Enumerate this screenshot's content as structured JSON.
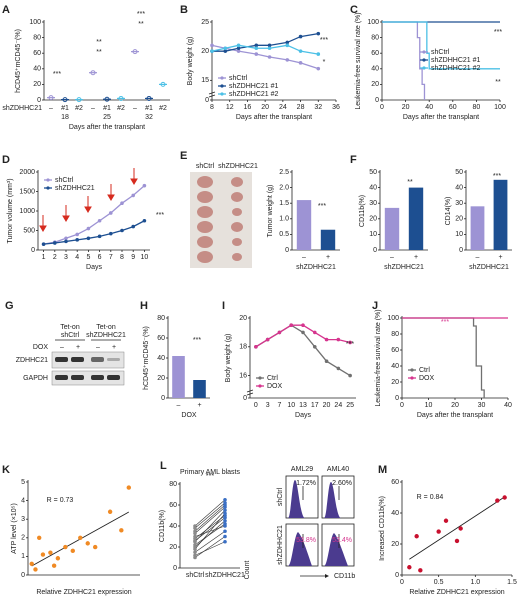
{
  "chart_data": [
    {
      "panel": "A",
      "type": "dot",
      "ylabel": "hCD45⁺mCD45⁻(%)",
      "xlabel": "Days after the transplant",
      "group_label": "shZDHHC21",
      "categories": [
        "–",
        "#1",
        "#2",
        "–",
        "#1",
        "#2",
        "–",
        "#1",
        "#2"
      ],
      "groups": [
        "18",
        "25",
        "32"
      ],
      "values": [
        3,
        0.5,
        0.5,
        35,
        1,
        2,
        62,
        2,
        20
      ],
      "colors": [
        "#9d93d4",
        "#1d4f91",
        "#4cc0e6",
        "#9d93d4",
        "#1d4f91",
        "#4cc0e6",
        "#9d93d4",
        "#1d4f91",
        "#4cc0e6"
      ],
      "ylim": [
        0,
        100
      ],
      "yticks": [
        0,
        20,
        40,
        60,
        80,
        100
      ],
      "annotations": [
        "***",
        "**",
        "**",
        "***",
        "**"
      ]
    },
    {
      "panel": "B",
      "type": "line",
      "ylabel": "Body weight (g)",
      "xlabel": "Days after the transplant",
      "x": [
        8,
        11,
        14,
        18,
        21,
        25,
        28,
        32
      ],
      "xlim": [
        8,
        36
      ],
      "xticks": [
        8,
        12,
        16,
        20,
        24,
        28,
        32,
        36
      ],
      "ylim": [
        0,
        25
      ],
      "ybreak": [
        0,
        13
      ],
      "yticks": [
        0,
        15,
        20,
        25
      ],
      "series": [
        {
          "name": "shCtrl",
          "color": "#9d93d4",
          "values": [
            21,
            20.5,
            20,
            19.5,
            19,
            18.5,
            18,
            17
          ]
        },
        {
          "name": "shZDHHC21 #1",
          "color": "#1d4f91",
          "values": [
            20,
            20,
            20.5,
            21,
            21,
            21.5,
            22.5,
            23
          ]
        },
        {
          "name": "shZDHHC21 #2",
          "color": "#4cc0e6",
          "values": [
            20,
            20.5,
            21,
            20.5,
            20.5,
            21,
            20,
            19.5
          ]
        }
      ],
      "annotations": [
        "***",
        "*"
      ]
    },
    {
      "panel": "C",
      "type": "step",
      "ylabel": "Leukemia-free survival rate (%)",
      "xlabel": "Days after the transplant",
      "xlim": [
        0,
        100
      ],
      "xticks": [
        0,
        20,
        40,
        60,
        80,
        100
      ],
      "ylim": [
        0,
        100
      ],
      "yticks": [
        0,
        20,
        40,
        60,
        80,
        100
      ],
      "series": [
        {
          "name": "shCtrl",
          "color": "#9d93d4",
          "x": [
            0,
            30,
            32,
            34,
            36
          ],
          "values": [
            100,
            80,
            40,
            20,
            0
          ]
        },
        {
          "name": "shZDHHC21 #1",
          "color": "#1d4f91",
          "x": [
            0,
            100
          ],
          "values": [
            100,
            100
          ]
        },
        {
          "name": "shZDHHC21 #2",
          "color": "#4cc0e6",
          "x": [
            0,
            38,
            40,
            100
          ],
          "values": [
            100,
            60,
            40,
            40
          ]
        }
      ],
      "annotations": [
        "***",
        "**"
      ]
    },
    {
      "panel": "D",
      "type": "line",
      "ylabel": "Tumor volume (mm³)",
      "xlabel": "Days",
      "x": [
        1,
        2,
        3,
        4,
        5,
        6,
        7,
        8,
        9,
        10
      ],
      "xlim": [
        0.5,
        10.5
      ],
      "xticks": [
        1,
        2,
        3,
        4,
        5,
        6,
        7,
        8,
        9,
        10
      ],
      "ylim": [
        0,
        2000
      ],
      "yticks": [
        0,
        500,
        1000,
        1500,
        2000
      ],
      "series": [
        {
          "name": "shCtrl",
          "color": "#9d93d4",
          "values": [
            150,
            200,
            300,
            400,
            550,
            750,
            950,
            1200,
            1400,
            1650
          ]
        },
        {
          "name": "shZDHHC21",
          "color": "#1d4f91",
          "values": [
            150,
            180,
            220,
            260,
            300,
            350,
            420,
            500,
            600,
            750
          ]
        }
      ],
      "annotations": [
        "***"
      ]
    },
    {
      "panel": "E",
      "type": "bar",
      "ylabel": "Tumor weight (g)",
      "xlabel": "shZDHHC21",
      "categories": [
        "–",
        "+"
      ],
      "values": [
        1.6,
        0.65
      ],
      "colors": [
        "#9d93d4",
        "#1d4f91"
      ],
      "ylim": [
        0,
        2.5
      ],
      "yticks": [
        0,
        0.5,
        {
          "value": 1,
          "label": "1.0"
        },
        1.5,
        {
          "value": 2,
          "label": "2.0"
        },
        2.5
      ],
      "annotations": [
        "***"
      ]
    },
    {
      "panel": "F",
      "type": "bar",
      "ylabel": "CD11b(%)",
      "xlabel": "shZDHHC21",
      "categories": [
        "–",
        "+"
      ],
      "values": [
        27,
        40
      ],
      "colors": [
        "#9d93d4",
        "#1d4f91"
      ],
      "ylim": [
        0,
        50
      ],
      "yticks": [
        0,
        10,
        20,
        30,
        40,
        50
      ],
      "annotations": [
        "**"
      ]
    },
    {
      "type": "bar",
      "ylabel": "CD14(%)",
      "xlabel": "shZDHHC21",
      "categories": [
        "–",
        "+"
      ],
      "values": [
        28,
        45
      ],
      "colors": [
        "#9d93d4",
        "#1d4f91"
      ],
      "ylim": [
        0,
        50
      ],
      "yticks": [
        0,
        10,
        20,
        30,
        40,
        50
      ],
      "annotations": [
        "***"
      ]
    },
    {
      "panel": "H",
      "type": "bar",
      "ylabel": "hCD45⁺mCD45⁻(%)",
      "xlabel": "DOX",
      "categories": [
        "–",
        "+"
      ],
      "values": [
        42,
        18
      ],
      "colors": [
        "#9d93d4",
        "#1d4f91"
      ],
      "ylim": [
        0,
        80
      ],
      "yticks": [
        0,
        20,
        40,
        60,
        80
      ],
      "annotations": [
        "***"
      ]
    },
    {
      "panel": "I",
      "type": "line",
      "ylabel": "Body weight (g)",
      "xlabel": "Days",
      "categories": [
        "0",
        "3",
        "7",
        "10",
        "13",
        "17",
        "20",
        "24",
        "25"
      ],
      "ylim": [
        0,
        20
      ],
      "ybreak": [
        0,
        15
      ],
      "yticks": [
        0,
        16,
        18,
        20
      ],
      "series": [
        {
          "name": "Ctrl",
          "color": "#707070",
          "values": [
            18,
            18.5,
            19,
            19.5,
            19,
            18,
            17,
            16.5,
            16
          ]
        },
        {
          "name": "DOX",
          "color": "#d6358e",
          "values": [
            18,
            18.5,
            19,
            19.5,
            19.5,
            19,
            18.5,
            18.5,
            18.3
          ]
        }
      ],
      "annotations": [
        "***"
      ]
    },
    {
      "panel": "J",
      "type": "step",
      "ylabel": "Leukemia-free survival rate (%)",
      "xlabel": "Days after the transplant",
      "xlim": [
        0,
        40
      ],
      "xticks": [
        0,
        10,
        20,
        30,
        40
      ],
      "ylim": [
        0,
        100
      ],
      "yticks": [
        0,
        20,
        40,
        60,
        80,
        100
      ],
      "series": [
        {
          "name": "Ctrl",
          "color": "#707070",
          "x": [
            0,
            27,
            28,
            30,
            31
          ],
          "values": [
            100,
            90,
            40,
            10,
            0
          ]
        },
        {
          "name": "DOX",
          "color": "#d6358e",
          "x": [
            0,
            40
          ],
          "values": [
            100,
            100
          ]
        }
      ],
      "annotations": [
        "***"
      ]
    },
    {
      "panel": "K",
      "type": "scatter",
      "ylabel": "ATP level (×10⁵)",
      "xlabel": "Relative ZDHHC21 expression",
      "color": "#f08a24",
      "xlim": [
        0,
        1.5
      ],
      "ylim": [
        0,
        5
      ],
      "yticks": [
        0,
        1,
        2,
        3,
        4,
        5
      ],
      "x": [
        0.05,
        0.1,
        0.15,
        0.2,
        0.3,
        0.35,
        0.4,
        0.5,
        0.6,
        0.7,
        0.8,
        0.9,
        1.1,
        1.25,
        1.35
      ],
      "values": [
        0.6,
        0.3,
        2,
        1.1,
        1.2,
        0.5,
        0.9,
        1.5,
        1.3,
        2,
        1.7,
        1.5,
        3.4,
        2.4,
        4.7
      ],
      "annotations": [
        "R = 0.73"
      ]
    },
    {
      "panel": "L",
      "type": "paired",
      "title": "Primary AML blasts",
      "ylabel": "CD11b(%)",
      "categories": [
        "shCtrl",
        "shZDHHC21"
      ],
      "colors": [
        "#8a8a8a",
        "#3a6fc4"
      ],
      "ylim": [
        0,
        80
      ],
      "yticks": [
        0,
        20,
        40,
        60,
        80
      ],
      "pairs": [
        [
          30,
          40
        ],
        [
          20,
          45
        ],
        [
          15,
          35
        ],
        [
          25,
          55
        ],
        [
          28,
          50
        ],
        [
          10,
          30
        ],
        [
          35,
          60
        ],
        [
          40,
          65
        ],
        [
          22,
          42
        ],
        [
          18,
          52
        ],
        [
          33,
          58
        ],
        [
          12,
          25
        ],
        [
          26,
          48
        ],
        [
          38,
          62
        ]
      ],
      "annotations": [
        "***"
      ]
    },
    {
      "panel": "M",
      "type": "scatter",
      "ylabel": "Increased CD11b(%)",
      "xlabel": "Relative ZDHHC21 expression",
      "color": "#c8102e",
      "xlim": [
        0,
        1.5
      ],
      "xticks": [
        0,
        0.5,
        {
          "value": 1,
          "label": "1.0"
        },
        1.5
      ],
      "ylim": [
        0,
        60
      ],
      "yticks": [
        0,
        20,
        40,
        60
      ],
      "x": [
        0.1,
        0.2,
        0.25,
        0.5,
        0.6,
        0.75,
        0.8,
        1.3,
        1.4
      ],
      "values": [
        5,
        25,
        3,
        28,
        35,
        22,
        30,
        48,
        50
      ],
      "annotations": [
        "R = 0.84"
      ]
    }
  ],
  "photo": {
    "labels": [
      "shCtrl",
      "shZDHHC21"
    ]
  },
  "blot": {
    "panel": "G",
    "groups": [
      [
        "Tet-on",
        "shCtrl"
      ],
      [
        "Tet-on",
        "shZDHHC21"
      ]
    ],
    "dox": "DOX",
    "lanes": [
      "–",
      "+",
      "–",
      "+"
    ],
    "rows": [
      "ZDHHC21",
      "GAPDH"
    ]
  },
  "flow": {
    "samples": [
      "AML29",
      "AML40"
    ],
    "rows": [
      "shCtrl",
      "shZDHHC21"
    ],
    "ylabel": "Count",
    "xlabel": "CD11b",
    "percents": [
      "1.72%",
      "2.60%",
      "53.8%",
      "53.4%"
    ]
  }
}
